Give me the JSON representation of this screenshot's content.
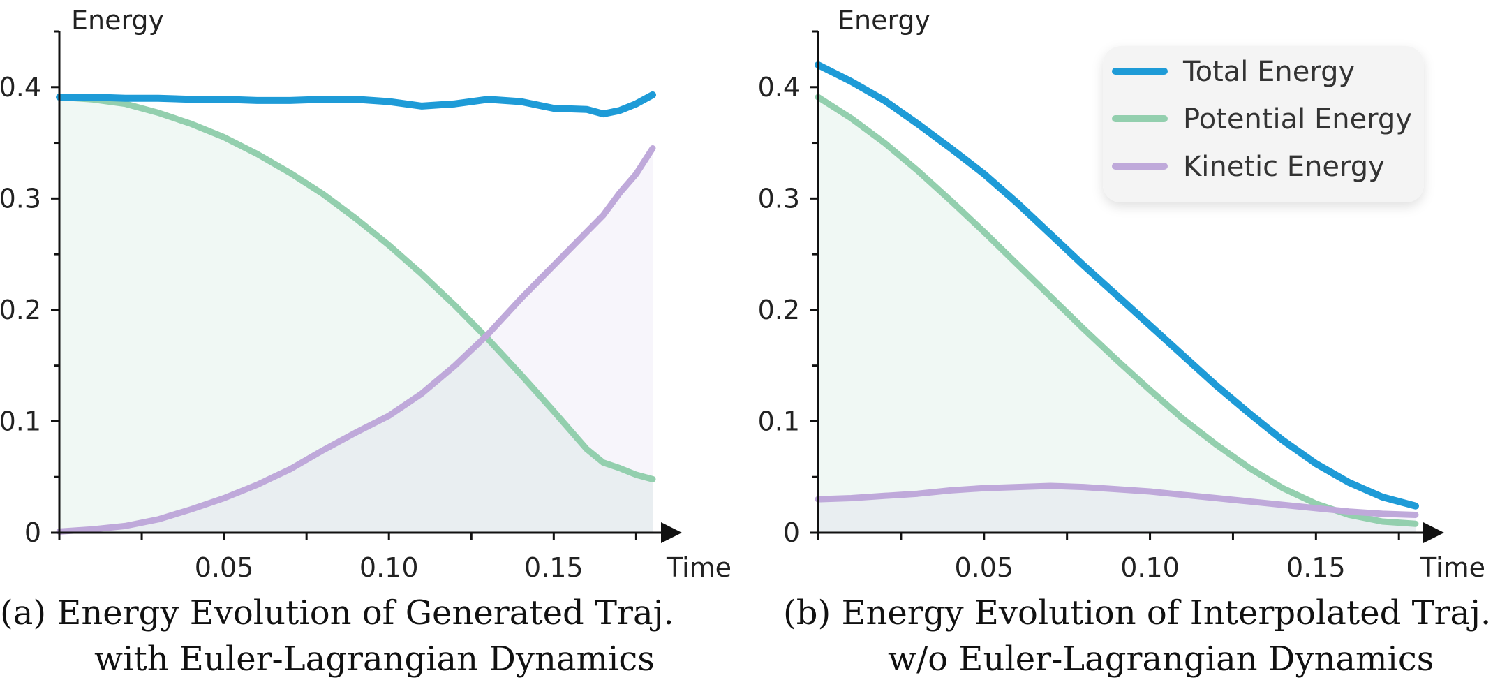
{
  "colors": {
    "total": "#1E9BD7",
    "potential": "#93CFAE",
    "kinetic": "#BFA9DA",
    "axis": "#111111"
  },
  "legend": {
    "position": "top-right of panel (b)",
    "items": [
      {
        "label": "Total Energy",
        "color": "#1E9BD7"
      },
      {
        "label": "Potential Energy",
        "color": "#93CFAE"
      },
      {
        "label": "Kinetic Energy",
        "color": "#BFA9DA"
      }
    ]
  },
  "chart_data": [
    {
      "type": "line",
      "panel": "a",
      "caption_line1": "(a) Energy Evolution of Generated Traj.",
      "caption_line2": "with Euler-Lagrangian Dynamics",
      "xlabel": "Time",
      "ylabel": "Energy",
      "xlim": [
        0,
        0.18
      ],
      "ylim": [
        0,
        0.45
      ],
      "xticks": [
        0.05,
        0.1,
        0.15
      ],
      "xtick_labels": [
        "0.05",
        "0.10",
        "0.15"
      ],
      "yticks": [
        0,
        0.1,
        0.2,
        0.3,
        0.4
      ],
      "ytick_labels": [
        "0",
        "0.1",
        "0.2",
        "0.3",
        "0.4"
      ],
      "grid": false,
      "x": [
        0,
        0.01,
        0.02,
        0.03,
        0.04,
        0.05,
        0.06,
        0.07,
        0.08,
        0.09,
        0.1,
        0.11,
        0.12,
        0.13,
        0.14,
        0.15,
        0.16,
        0.165,
        0.17,
        0.175,
        0.18
      ],
      "series": [
        {
          "name": "Total Energy",
          "key": "total",
          "values": [
            0.391,
            0.391,
            0.39,
            0.39,
            0.389,
            0.389,
            0.388,
            0.388,
            0.389,
            0.389,
            0.387,
            0.383,
            0.385,
            0.389,
            0.387,
            0.381,
            0.38,
            0.376,
            0.379,
            0.385,
            0.393
          ]
        },
        {
          "name": "Potential Energy",
          "key": "potential",
          "values": [
            0.391,
            0.389,
            0.385,
            0.377,
            0.367,
            0.355,
            0.34,
            0.323,
            0.304,
            0.282,
            0.258,
            0.232,
            0.204,
            0.174,
            0.142,
            0.109,
            0.075,
            0.063,
            0.058,
            0.052,
            0.048
          ]
        },
        {
          "name": "Kinetic Energy",
          "key": "kinetic",
          "values": [
            0.001,
            0.003,
            0.006,
            0.012,
            0.021,
            0.031,
            0.043,
            0.057,
            0.074,
            0.09,
            0.105,
            0.125,
            0.15,
            0.178,
            0.21,
            0.24,
            0.27,
            0.285,
            0.305,
            0.322,
            0.345
          ]
        }
      ]
    },
    {
      "type": "line",
      "panel": "b",
      "caption_line1": "(b) Energy Evolution of Interpolated Traj.",
      "caption_line2": "w/o Euler-Lagrangian Dynamics",
      "xlabel": "Time",
      "ylabel": "Energy",
      "xlim": [
        0,
        0.18
      ],
      "ylim": [
        0,
        0.45
      ],
      "xticks": [
        0.05,
        0.1,
        0.15
      ],
      "xtick_labels": [
        "0.05",
        "0.10",
        "0.15"
      ],
      "yticks": [
        0,
        0.1,
        0.2,
        0.3,
        0.4
      ],
      "ytick_labels": [
        "0",
        "0.1",
        "0.2",
        "0.3",
        "0.4"
      ],
      "grid": false,
      "x": [
        0,
        0.01,
        0.02,
        0.03,
        0.04,
        0.05,
        0.06,
        0.07,
        0.08,
        0.09,
        0.1,
        0.11,
        0.12,
        0.13,
        0.14,
        0.15,
        0.16,
        0.17,
        0.18
      ],
      "series": [
        {
          "name": "Total Energy",
          "key": "total",
          "values": [
            0.42,
            0.405,
            0.388,
            0.367,
            0.345,
            0.322,
            0.296,
            0.268,
            0.24,
            0.213,
            0.186,
            0.159,
            0.132,
            0.107,
            0.083,
            0.062,
            0.045,
            0.032,
            0.024
          ]
        },
        {
          "name": "Potential Energy",
          "key": "potential",
          "values": [
            0.391,
            0.372,
            0.35,
            0.325,
            0.298,
            0.27,
            0.241,
            0.212,
            0.183,
            0.155,
            0.128,
            0.102,
            0.079,
            0.058,
            0.04,
            0.026,
            0.016,
            0.01,
            0.008
          ]
        },
        {
          "name": "Kinetic Energy",
          "key": "kinetic",
          "values": [
            0.03,
            0.031,
            0.033,
            0.035,
            0.038,
            0.04,
            0.041,
            0.042,
            0.041,
            0.039,
            0.037,
            0.034,
            0.031,
            0.028,
            0.025,
            0.022,
            0.019,
            0.017,
            0.016
          ]
        }
      ]
    }
  ]
}
